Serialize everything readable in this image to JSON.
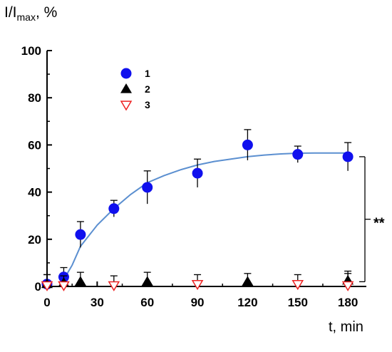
{
  "chart_data": {
    "type": "scatter",
    "ylabel_main": "I/I",
    "ylabel_sub": "max",
    "ylabel_tail": ", %",
    "xlabel": "t, min",
    "xlim": [
      0,
      190
    ],
    "ylim": [
      0,
      100
    ],
    "xticks": [
      0,
      30,
      60,
      90,
      120,
      150,
      180
    ],
    "yticks": [
      0,
      20,
      40,
      60,
      80,
      100
    ],
    "legend_position": "top-left",
    "series": [
      {
        "name": "1",
        "marker": "filled-circle",
        "color": "#1010ee",
        "points": [
          {
            "x": 0,
            "y": 1,
            "err": 4
          },
          {
            "x": 10,
            "y": 4,
            "err": 4
          },
          {
            "x": 20,
            "y": 22,
            "err": 5.5
          },
          {
            "x": 40,
            "y": 33,
            "err": 3.5
          },
          {
            "x": 60,
            "y": 42,
            "err": 7
          },
          {
            "x": 90,
            "y": 48,
            "err": 6
          },
          {
            "x": 120,
            "y": 60,
            "err": 6.5
          },
          {
            "x": 150,
            "y": 56,
            "err": 3.5
          },
          {
            "x": 180,
            "y": 55,
            "err": 6
          }
        ]
      },
      {
        "name": "2",
        "marker": "filled-triangle-up",
        "color": "#000000",
        "points": [
          {
            "x": 0,
            "y": 1,
            "err": 4
          },
          {
            "x": 10,
            "y": 1.5,
            "err": 3
          },
          {
            "x": 20,
            "y": 2,
            "err": 4
          },
          {
            "x": 60,
            "y": 2,
            "err": 4
          },
          {
            "x": 120,
            "y": 2,
            "err": 3.5
          },
          {
            "x": 180,
            "y": 2.5,
            "err": 4
          }
        ]
      },
      {
        "name": "3",
        "marker": "open-triangle-down",
        "color": "#ee2222",
        "points": [
          {
            "x": 0,
            "y": 0.5,
            "err": 0
          },
          {
            "x": 10,
            "y": 0.5,
            "err": 0
          },
          {
            "x": 40,
            "y": 0.5,
            "err": 4
          },
          {
            "x": 90,
            "y": 1,
            "err": 4
          },
          {
            "x": 150,
            "y": 1,
            "err": 4
          },
          {
            "x": 180,
            "y": 0.5,
            "err": 5
          }
        ]
      }
    ],
    "fit_curve": {
      "color": "#5b8fd0",
      "points": [
        [
          10,
          3
        ],
        [
          15,
          9
        ],
        [
          20,
          17
        ],
        [
          30,
          26
        ],
        [
          40,
          33
        ],
        [
          50,
          39
        ],
        [
          60,
          44
        ],
        [
          70,
          47
        ],
        [
          80,
          49.5
        ],
        [
          90,
          51.5
        ],
        [
          100,
          53
        ],
        [
          110,
          54
        ],
        [
          120,
          55
        ],
        [
          130,
          55.7
        ],
        [
          140,
          56.2
        ],
        [
          150,
          56.5
        ],
        [
          160,
          56.6
        ],
        [
          170,
          56.6
        ],
        [
          180,
          56.6
        ]
      ]
    },
    "significance": {
      "label": "**",
      "y_top": 55,
      "y_bottom": 2
    }
  }
}
